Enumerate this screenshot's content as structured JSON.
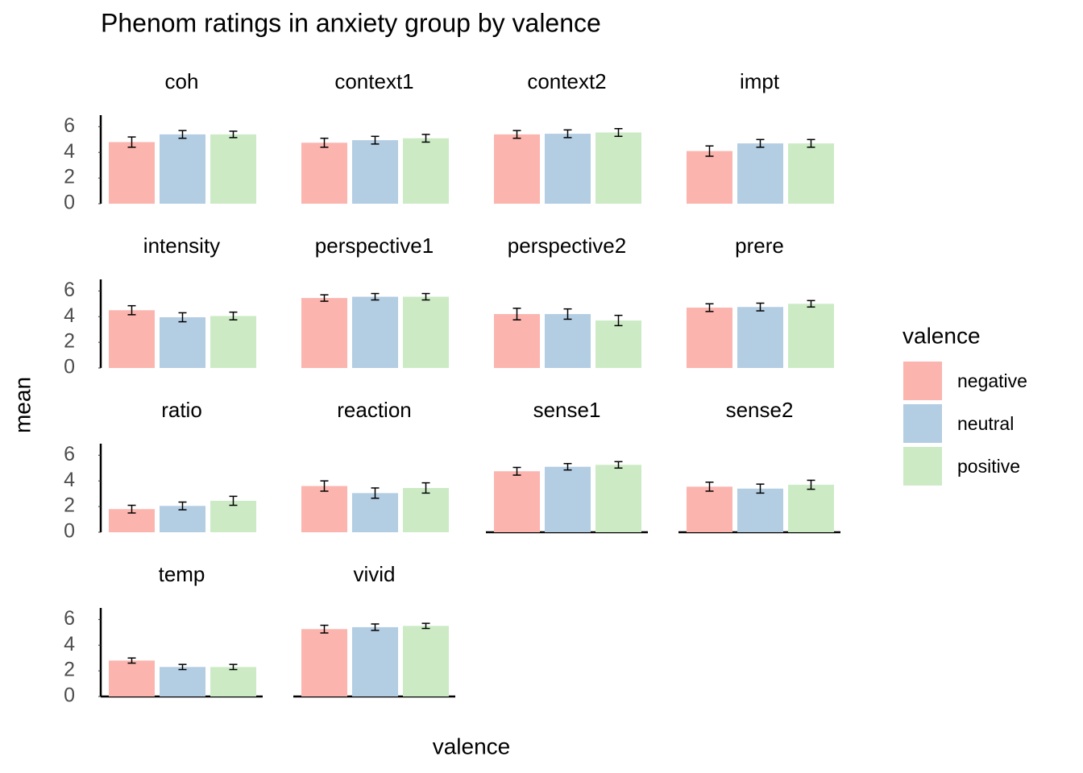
{
  "chart_data": {
    "type": "bar",
    "title": "Phenom ratings in anxiety group by valence",
    "xlabel": "valence",
    "ylabel": "mean",
    "legend_title": "valence",
    "series": [
      {
        "name": "negative",
        "color": "#fbb4ae"
      },
      {
        "name": "neutral",
        "color": "#b3cde3"
      },
      {
        "name": "positive",
        "color": "#ccebc5"
      }
    ],
    "ylim": [
      0,
      6.9
    ],
    "yticks": [
      0,
      2,
      4,
      6
    ],
    "facets": [
      {
        "title": "coh",
        "values": [
          4.8,
          5.4,
          5.4
        ],
        "errors": [
          0.4,
          0.3,
          0.25
        ]
      },
      {
        "title": "context1",
        "values": [
          4.75,
          4.95,
          5.1
        ],
        "errors": [
          0.35,
          0.3,
          0.3
        ]
      },
      {
        "title": "context2",
        "values": [
          5.4,
          5.45,
          5.55
        ],
        "errors": [
          0.3,
          0.3,
          0.3
        ]
      },
      {
        "title": "impt",
        "values": [
          4.1,
          4.7,
          4.7
        ],
        "errors": [
          0.4,
          0.3,
          0.3
        ]
      },
      {
        "title": "intensity",
        "values": [
          4.5,
          3.95,
          4.05
        ],
        "errors": [
          0.35,
          0.35,
          0.3
        ]
      },
      {
        "title": "perspective1",
        "values": [
          5.45,
          5.55,
          5.55
        ],
        "errors": [
          0.25,
          0.25,
          0.25
        ]
      },
      {
        "title": "perspective2",
        "values": [
          4.2,
          4.2,
          3.7
        ],
        "errors": [
          0.45,
          0.4,
          0.4
        ]
      },
      {
        "title": "prere",
        "values": [
          4.7,
          4.75,
          5.0
        ],
        "errors": [
          0.3,
          0.3,
          0.25
        ]
      },
      {
        "title": "ratio",
        "values": [
          1.8,
          2.05,
          2.45
        ],
        "errors": [
          0.3,
          0.3,
          0.35
        ]
      },
      {
        "title": "reaction",
        "values": [
          3.6,
          3.05,
          3.45
        ],
        "errors": [
          0.4,
          0.4,
          0.4
        ]
      },
      {
        "title": "sense1",
        "values": [
          4.75,
          5.1,
          5.25
        ],
        "errors": [
          0.3,
          0.25,
          0.25
        ]
      },
      {
        "title": "sense2",
        "values": [
          3.55,
          3.4,
          3.7
        ],
        "errors": [
          0.35,
          0.35,
          0.35
        ]
      },
      {
        "title": "temp",
        "values": [
          2.8,
          2.3,
          2.3
        ],
        "errors": [
          0.2,
          0.2,
          0.2
        ]
      },
      {
        "title": "vivid",
        "values": [
          5.25,
          5.4,
          5.5
        ],
        "errors": [
          0.3,
          0.25,
          0.2
        ]
      }
    ]
  }
}
